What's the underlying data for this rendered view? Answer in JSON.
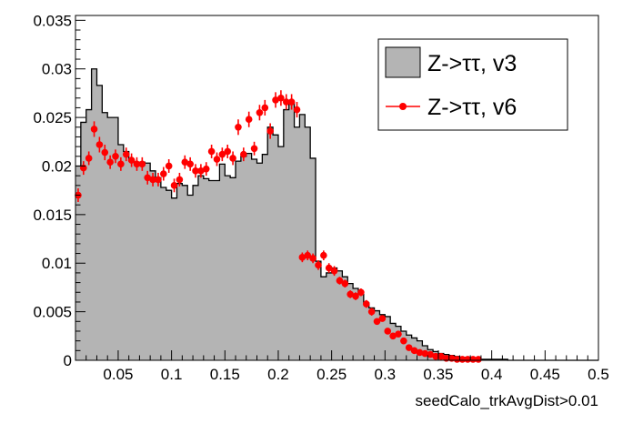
{
  "chart_data": {
    "type": "histogram",
    "title": "",
    "xlabel": "seedCalo_trkAvgDist>0.01",
    "ylabel": "",
    "xlim": [
      0.01,
      0.5
    ],
    "ylim": [
      0,
      0.0355
    ],
    "bin_width": 0.005,
    "x_ticks": [
      0.05,
      0.1,
      0.15,
      0.2,
      0.25,
      0.3,
      0.35,
      0.4,
      0.45,
      0.5
    ],
    "x_tick_labels": [
      "0.05",
      "0.1",
      "0.15",
      "0.2",
      "0.25",
      "0.3",
      "0.35",
      "0.4",
      "0.45",
      "0.5"
    ],
    "y_ticks": [
      0,
      0.005,
      0.01,
      0.015,
      0.02,
      0.025,
      0.03,
      0.035
    ],
    "y_tick_labels": [
      "0",
      "0.005",
      "0.01",
      "0.015",
      "0.02",
      "0.025",
      "0.03",
      "0.035"
    ],
    "legend_position": "top-right",
    "series": [
      {
        "name": "Z->ττ, v3",
        "style": "filled-histogram",
        "fill_color": "#b4b4b4",
        "line_color": "#000000",
        "values": [
          0.02,
          0.0245,
          0.0258,
          0.03,
          0.0283,
          0.0255,
          0.025,
          0.025,
          0.0222,
          0.0215,
          0.0206,
          0.0204,
          0.0204,
          0.0203,
          0.0195,
          0.0188,
          0.0178,
          0.0175,
          0.0167,
          0.0182,
          0.018,
          0.017,
          0.018,
          0.019,
          0.0187,
          0.0185,
          0.0185,
          0.0202,
          0.019,
          0.0188,
          0.0205,
          0.021,
          0.0213,
          0.0207,
          0.0203,
          0.0212,
          0.024,
          0.0232,
          0.022,
          0.0258,
          0.0265,
          0.024,
          0.0253,
          0.024,
          0.0208,
          0.0102,
          0.0086,
          0.009,
          0.0095,
          0.0092,
          0.0086,
          0.0079,
          0.0074,
          0.0068,
          0.0059,
          0.0054,
          0.0051,
          0.0047,
          0.0045,
          0.0038,
          0.0035,
          0.003,
          0.0026,
          0.0023,
          0.002,
          0.0015,
          0.0011,
          0.0009,
          0.0007,
          0.0006,
          0.0005,
          0.0004,
          0.0003,
          0.0002,
          0.0002,
          0.0001,
          0.0001,
          0.0001,
          0.0001,
          0.0001,
          0.0001,
          0,
          0,
          0,
          0,
          0,
          0,
          0,
          0,
          0,
          0,
          0,
          0,
          0,
          0,
          0,
          0,
          0
        ]
      },
      {
        "name": "Z->ττ, v6",
        "style": "markers-with-errors",
        "color": "#ff0000",
        "values": [
          0.017,
          0.0198,
          0.0208,
          0.0238,
          0.0222,
          0.0214,
          0.0204,
          0.021,
          0.0202,
          0.0212,
          0.0206,
          0.0202,
          0.0202,
          0.0188,
          0.0186,
          0.0186,
          0.0192,
          0.02,
          0.018,
          0.0186,
          0.0204,
          0.0202,
          0.0195,
          0.0195,
          0.0197,
          0.0215,
          0.0207,
          0.0212,
          0.0215,
          0.0208,
          0.024,
          0.0212,
          0.0248,
          0.0218,
          0.0255,
          0.026,
          0.0236,
          0.0268,
          0.027,
          0.0266,
          0.0266,
          0.0258,
          0.0106,
          0.0108,
          0.0105,
          0.0098,
          0.0108,
          0.0095,
          0.0092,
          0.0082,
          0.0079,
          0.0068,
          0.0066,
          0.007,
          0.0058,
          0.005,
          0.004,
          0.0043,
          0.003,
          0.0025,
          0.0027,
          0.002,
          0.0013,
          0.001,
          0.0008,
          0.0007,
          0.0006,
          0.0004,
          0.0004,
          0.0002,
          0.0002,
          0.0001,
          0.0001,
          0.0001,
          0.0001,
          0.0001
        ],
        "errors": [
          0.0007,
          0.0007,
          0.0007,
          0.0008,
          0.0008,
          0.0008,
          0.0007,
          0.0007,
          0.0007,
          0.0007,
          0.0007,
          0.0007,
          0.0007,
          0.0007,
          0.0007,
          0.0007,
          0.0007,
          0.0007,
          0.0007,
          0.0007,
          0.0007,
          0.0007,
          0.0007,
          0.0007,
          0.0007,
          0.0007,
          0.0007,
          0.0007,
          0.0007,
          0.0007,
          0.0008,
          0.0007,
          0.0008,
          0.0007,
          0.0008,
          0.0008,
          0.0008,
          0.0008,
          0.0008,
          0.0008,
          0.0008,
          0.0008,
          0.0005,
          0.0005,
          0.0005,
          0.0005,
          0.0005,
          0.0005,
          0.0005,
          0.0004,
          0.0004,
          0.0004,
          0.0004,
          0.0004,
          0.0004,
          0.0004,
          0.0003,
          0.0003,
          0.0003,
          0.0003,
          0.0003,
          0.0002,
          0.0002,
          0.0002,
          0.0002,
          0.0002,
          0.0002,
          0.0001,
          0.0001,
          0.0001,
          0.0001,
          0.0001,
          0.0001,
          0.0001,
          0.0001,
          0.0001
        ]
      }
    ]
  }
}
